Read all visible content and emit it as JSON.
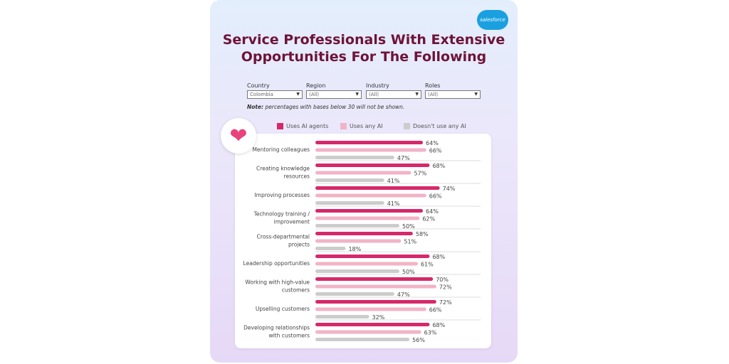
{
  "brand": {
    "logo_text": "salesforce"
  },
  "title": [
    "Service Professionals With Extensive",
    "Opportunities For The Following"
  ],
  "filters": [
    {
      "label": "Country",
      "value": "Colombia"
    },
    {
      "label": "Region",
      "value": "(All)"
    },
    {
      "label": "Industry",
      "value": "(All)"
    },
    {
      "label": "Roles",
      "value": "(All)"
    }
  ],
  "note": {
    "bold": "Note:",
    "text": " percentages with bases below 30 will not be shown."
  },
  "icon": "heart-icon",
  "chart_data": {
    "type": "bar",
    "orientation": "horizontal",
    "unit": "%",
    "legend_placement": "top",
    "categories": [
      "Mentoring colleagues",
      "Creating knowledge resources",
      "Improving processes",
      "Technology training / improvement",
      "Cross-departmental projects",
      "Leadership opportunities",
      "Working with high-value customers",
      "Upselling customers",
      "Developing relationships with customers"
    ],
    "category_lines": [
      [
        "Mentoring colleagues"
      ],
      [
        "Creating knowledge",
        "resources"
      ],
      [
        "Improving processes"
      ],
      [
        "Technology training /",
        "improvement"
      ],
      [
        "Cross-departmental",
        "projects"
      ],
      [
        "Leadership opportunities"
      ],
      [
        "Working with high-value",
        "customers"
      ],
      [
        "Upselling customers"
      ],
      [
        "Developing relationships",
        "with customers"
      ]
    ],
    "series": [
      {
        "name": "Uses AI agents",
        "color": "#d6286a",
        "values": [
          64,
          68,
          74,
          64,
          58,
          68,
          70,
          72,
          68
        ]
      },
      {
        "name": "Uses any AI",
        "color": "#f2b3c6",
        "values": [
          66,
          57,
          66,
          62,
          51,
          61,
          72,
          66,
          63
        ]
      },
      {
        "name": "Doesn't use any AI",
        "color": "#cccccc",
        "values": [
          47,
          41,
          41,
          50,
          18,
          50,
          47,
          32,
          56
        ]
      }
    ]
  }
}
